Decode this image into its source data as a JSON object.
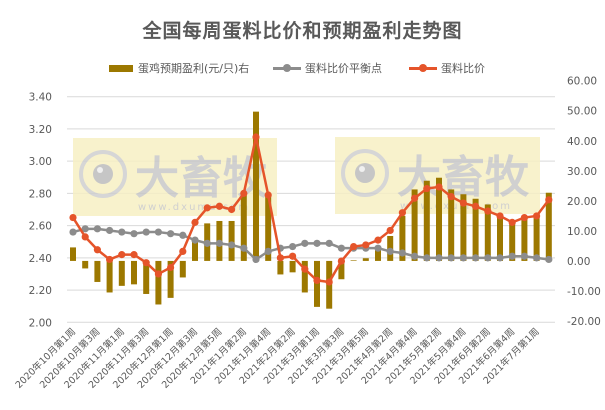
{
  "chart_data": {
    "type": "bar+line",
    "title": "全国每周蛋料比价和预期盈利走势图",
    "legend": [
      {
        "label": "蛋鸡预期盈利(元/只)右",
        "kind": "bar",
        "color": "#9c7800"
      },
      {
        "label": "蛋料比价平衡点",
        "kind": "line",
        "color": "#8c8c8c"
      },
      {
        "label": "蛋料比价",
        "kind": "line",
        "color": "#e5542a"
      }
    ],
    "legend_position": "top",
    "grid": true,
    "x_tick_labels": [
      "2020年10月第1周",
      "2020年10月第3周",
      "2020年11月第1周",
      "2020年11月第3周",
      "2020年12月第1周",
      "2020年12月第3周",
      "2020年12月第5周",
      "2021年1月第2周",
      "2021年1月第4周",
      "2021年2月第2周",
      "2021年3月第1周",
      "2021年3月第3周",
      "2021年3月第5周",
      "2021年4月第2周",
      "2021年4月第4周",
      "2021年5月第2周",
      "2021年5月第4周",
      "2021年6月第2周",
      "2021年6月第4周",
      "2021年7月第1周"
    ],
    "n_points": 40,
    "left_axis": {
      "ylim": [
        2.0,
        3.4
      ],
      "ticks": [
        "2.00",
        "2.20",
        "2.40",
        "2.60",
        "2.80",
        "3.00",
        "3.20",
        "3.40"
      ]
    },
    "right_axis": {
      "ylim": [
        -20,
        60
      ],
      "ticks": [
        "-20.00",
        "-10.00",
        "0.00",
        "10.00",
        "20.00",
        "30.00",
        "40.00",
        "50.00",
        "60.00"
      ]
    },
    "series": [
      {
        "name": "蛋鸡预期盈利(元/只)右",
        "type": "bar",
        "axis": "right",
        "color": "#9c7800",
        "values": [
          4.5,
          -2.5,
          -7.0,
          -10.5,
          -8.3,
          -7.8,
          -11.0,
          -14.5,
          -12.3,
          -5.5,
          7.7,
          12.5,
          13.3,
          13.3,
          22.4,
          49.7,
          21.9,
          -4.5,
          -3.8,
          -10.5,
          -15.3,
          -15.9,
          -6.1,
          0.2,
          0.9,
          4.5,
          8.3,
          15.0,
          23.8,
          26.7,
          27.7,
          23.8,
          22.2,
          20.7,
          18.8,
          14.9,
          13.3,
          14.4,
          15.5,
          22.7
        ]
      },
      {
        "name": "蛋料比价平衡点",
        "type": "line",
        "axis": "left",
        "color": "#8c8c8c",
        "values": [
          2.56,
          2.58,
          2.58,
          2.57,
          2.56,
          2.55,
          2.56,
          2.56,
          2.55,
          2.54,
          2.51,
          2.49,
          2.49,
          2.48,
          2.46,
          2.39,
          2.44,
          2.46,
          2.47,
          2.49,
          2.49,
          2.49,
          2.46,
          2.46,
          2.46,
          2.46,
          2.44,
          2.43,
          2.41,
          2.4,
          2.4,
          2.4,
          2.4,
          2.4,
          2.4,
          2.4,
          2.41,
          2.41,
          2.4,
          2.39
        ]
      },
      {
        "name": "蛋料比价",
        "type": "line",
        "axis": "left",
        "color": "#e5542a",
        "values": [
          2.65,
          2.53,
          2.45,
          2.39,
          2.42,
          2.42,
          2.37,
          2.3,
          2.34,
          2.44,
          2.62,
          2.71,
          2.72,
          2.7,
          2.8,
          3.15,
          2.79,
          2.4,
          2.41,
          2.33,
          2.26,
          2.25,
          2.38,
          2.47,
          2.48,
          2.51,
          2.57,
          2.68,
          2.77,
          2.83,
          2.84,
          2.78,
          2.74,
          2.72,
          2.69,
          2.66,
          2.62,
          2.65,
          2.66,
          2.76
        ]
      }
    ]
  },
  "watermark": {
    "text": "大畜牧",
    "url": "www.dxumu.com"
  }
}
